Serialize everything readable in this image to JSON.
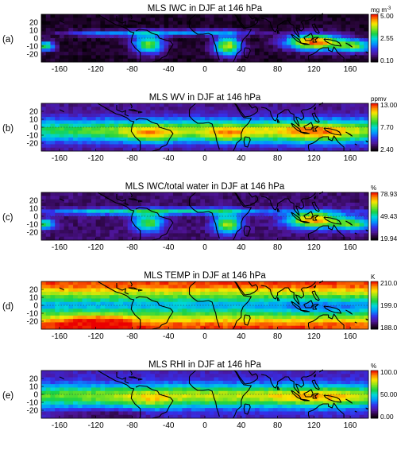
{
  "figure": {
    "x_ticks": [
      -160,
      -120,
      -80,
      -40,
      0,
      40,
      80,
      120,
      160
    ],
    "y_ticks": [
      20,
      10,
      0,
      -10,
      -20
    ]
  },
  "chart_data": [
    {
      "type": "heatmap",
      "panel": "(a)",
      "title": "MLS IWC in DJF at 146 hPa",
      "unit": "mg m",
      "unit_sup": "-3",
      "colorbar_ticks": [
        "5.00",
        "2.55",
        "0.10"
      ],
      "vmin": 0.1,
      "vmax": 5.0,
      "xlim": [
        -180,
        180
      ],
      "ylim": [
        -30,
        30
      ]
    },
    {
      "type": "heatmap",
      "panel": "(b)",
      "title": "MLS WV in DJF at 146 hPa",
      "unit": "ppmv",
      "colorbar_ticks": [
        "13.00",
        "7.70",
        "2.40"
      ],
      "vmin": 2.4,
      "vmax": 13.0,
      "xlim": [
        -180,
        180
      ],
      "ylim": [
        -30,
        30
      ]
    },
    {
      "type": "heatmap",
      "panel": "(c)",
      "title": "MLS IWC/total water in DJF at 146 hPa",
      "unit": "%",
      "colorbar_ticks": [
        "78.93",
        "49.43",
        "19.94"
      ],
      "vmin": 19.94,
      "vmax": 78.93,
      "xlim": [
        -180,
        180
      ],
      "ylim": [
        -30,
        30
      ]
    },
    {
      "type": "heatmap",
      "panel": "(d)",
      "title": "MLS TEMP in DJF at 146 hPa",
      "unit": "K",
      "colorbar_ticks": [
        "210.00",
        "199.00",
        "188.00"
      ],
      "vmin": 188.0,
      "vmax": 210.0,
      "xlim": [
        -180,
        180
      ],
      "ylim": [
        -30,
        30
      ]
    },
    {
      "type": "heatmap",
      "panel": "(e)",
      "title": "MLS RHI in DJF at 146 hPa",
      "unit": "%",
      "colorbar_ticks": [
        "100.00",
        "50.00",
        "0.00"
      ],
      "vmin": 0.0,
      "vmax": 100.0,
      "xlim": [
        -180,
        180
      ],
      "ylim": [
        -30,
        30
      ]
    }
  ]
}
